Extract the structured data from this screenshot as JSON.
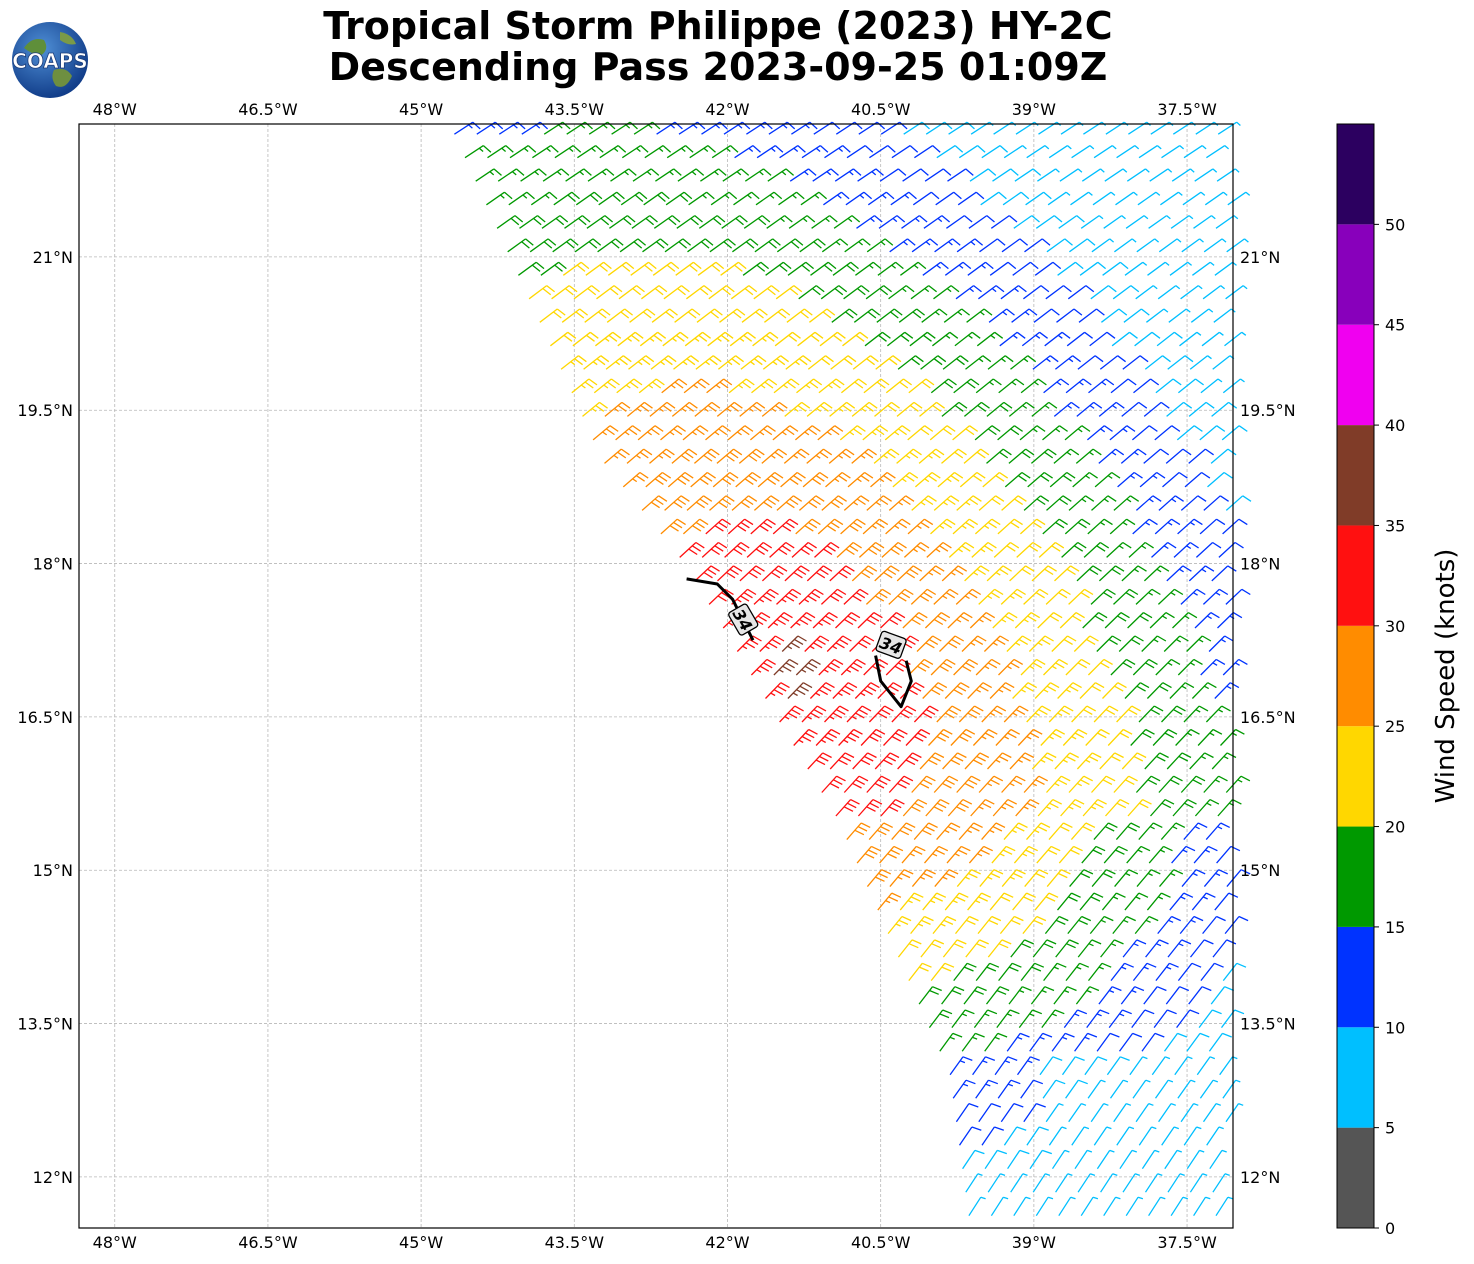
{
  "title": {
    "line1": "Tropical Storm Philippe (2023) HY-2C",
    "line2": "Descending Pass 2023-09-25 01:09Z"
  },
  "logo": {
    "text": "COAPS"
  },
  "map": {
    "lon_range": [
      -48.35,
      -37.05
    ],
    "lat_range": [
      11.5,
      22.3
    ],
    "lon_ticks": [
      {
        "value": -48.0,
        "label": "48°W"
      },
      {
        "value": -46.5,
        "label": "46.5°W"
      },
      {
        "value": -45.0,
        "label": "45°W"
      },
      {
        "value": -43.5,
        "label": "43.5°W"
      },
      {
        "value": -42.0,
        "label": "42°W"
      },
      {
        "value": -40.5,
        "label": "40.5°W"
      },
      {
        "value": -39.0,
        "label": "39°W"
      },
      {
        "value": -37.5,
        "label": "37.5°W"
      }
    ],
    "lat_ticks": [
      {
        "value": 21.0,
        "label": "21°N"
      },
      {
        "value": 19.5,
        "label": "19.5°N"
      },
      {
        "value": 18.0,
        "label": "18°N"
      },
      {
        "value": 16.5,
        "label": "16.5°N"
      },
      {
        "value": 15.0,
        "label": "15°N"
      },
      {
        "value": 13.5,
        "label": "13.5°N"
      },
      {
        "value": 12.0,
        "label": "12°N"
      }
    ],
    "grid": true
  },
  "contours": [
    {
      "label": "34",
      "points": [
        [
          -42.4,
          17.85
        ],
        [
          -42.1,
          17.8
        ],
        [
          -41.95,
          17.65
        ],
        [
          -41.85,
          17.45
        ],
        [
          -41.75,
          17.25
        ]
      ]
    },
    {
      "label": "34",
      "points": [
        [
          -40.55,
          17.1
        ],
        [
          -40.5,
          16.85
        ],
        [
          -40.3,
          16.6
        ],
        [
          -40.2,
          16.85
        ],
        [
          -40.25,
          17.05
        ]
      ]
    }
  ],
  "contour_labels": [
    {
      "text": "34",
      "lon": -41.85,
      "lat": 17.45,
      "angle": 60
    },
    {
      "text": "34",
      "lon": -40.4,
      "lat": 17.2,
      "angle": 20
    }
  ],
  "colorbar": {
    "label": "Wind Speed (knots)",
    "bounds": [
      0,
      5,
      10,
      15,
      20,
      25,
      30,
      35,
      40,
      45,
      50,
      55
    ],
    "colors": [
      "#555555",
      "#00bfff",
      "#0033ff",
      "#009900",
      "#ffd700",
      "#ff8c00",
      "#ff1010",
      "#803c28",
      "#f000f0",
      "#8800bb",
      "#2c0060"
    ],
    "ticks": [
      "0",
      "5",
      "10",
      "15",
      "20",
      "25",
      "30",
      "35",
      "40",
      "45",
      "50"
    ]
  },
  "chart_data": {
    "type": "wind barb map",
    "swath_edges": [
      {
        "side": "west",
        "points": [
          [
            -44.8,
            22.3
          ],
          [
            -43.3,
            19.0
          ],
          [
            -42.5,
            18.0
          ],
          [
            -41.0,
            15.5
          ],
          [
            -39.9,
            13.0
          ],
          [
            -39.7,
            11.5
          ]
        ]
      },
      {
        "side": "east",
        "points": [
          [
            -37.05,
            22.3
          ],
          [
            -37.05,
            11.5
          ]
        ]
      }
    ],
    "wind_direction": "northeasterly trade winds (barbs point to the NE)",
    "speed_bands_knots": [
      {
        "band": "15-20",
        "region": "outer swath north and east of the storm"
      },
      {
        "band": "20-25",
        "region": "northwest swath and inner ring"
      },
      {
        "band": "25-30",
        "region": "around the storm core"
      },
      {
        "band": "30-35",
        "region": "core band near 17°N 42-40.5°W"
      },
      {
        "band": "35-40",
        "region": "two small patches inside the 34-kt contours"
      },
      {
        "band": "10-15",
        "region": "south-east of the swath"
      },
      {
        "band": "5-10",
        "region": "southeast corner near 12°N 38°W"
      }
    ]
  }
}
